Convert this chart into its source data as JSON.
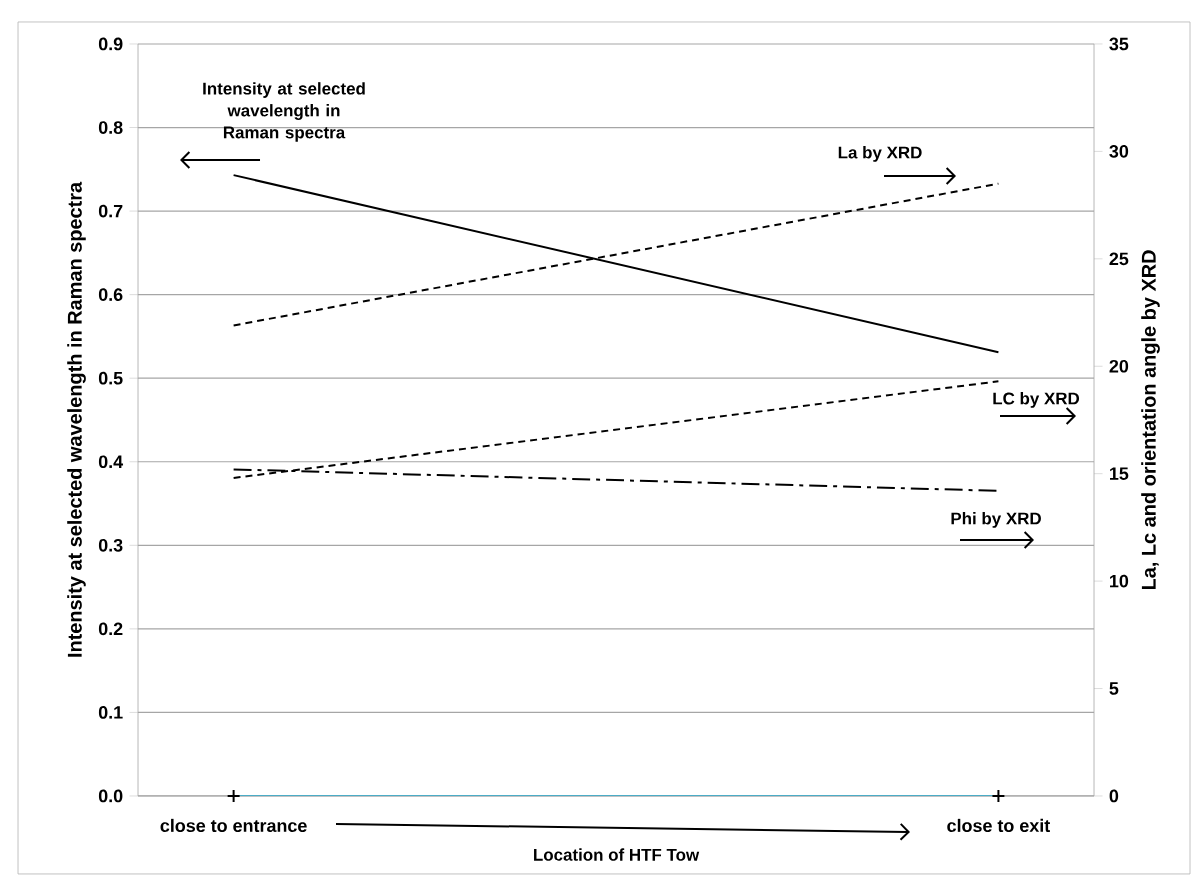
{
  "chart_data": {
    "type": "line",
    "categories": [
      "close to entrance",
      "close to exit"
    ],
    "xlabel": "Location of HTF Tow",
    "ylabel": "Intensity at selected wavelength in Raman spectra",
    "y2label": "La, Lc and orientation angle by XRD",
    "ylim": [
      0,
      0.9
    ],
    "yticks": [
      {
        "value": 0,
        "label": "0.0"
      },
      0.1,
      0.2,
      0.3,
      0.4,
      0.5,
      0.6,
      0.7,
      0.8,
      0.9
    ],
    "y2lim": [
      0,
      35
    ],
    "y2ticks": [
      0,
      5,
      10,
      15,
      20,
      25,
      30,
      35
    ],
    "grid": "y",
    "series": [
      {
        "name": "Intensity at selected wavelength in Raman spectra",
        "color": "#000000",
        "values": [
          0.743,
          0.531
        ],
        "line_style": "solid"
      },
      {
        "name": "La by XRD",
        "color": "#000000",
        "values": [
          21.9,
          28.5
        ],
        "axis": "y2",
        "line_style": "dashed"
      },
      {
        "name": "LC by XRD",
        "color": "#000000",
        "values": [
          14.8,
          19.3
        ],
        "axis": "y2",
        "line_style": "dashed"
      },
      {
        "name": "Phi by XRD",
        "color": "#000000",
        "values": [
          15.2,
          14.2
        ],
        "axis": "y2",
        "line_style": "dashdot"
      },
      {
        "color": "#4bacc6",
        "values": [
          0,
          0
        ],
        "marker": "cross"
      }
    ]
  }
}
